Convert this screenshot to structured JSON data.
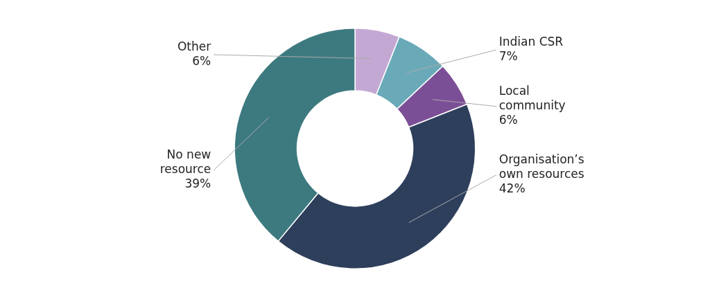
{
  "chart_data": {
    "type": "doughnut",
    "categories": [
      "Other",
      "Indian CSR",
      "Local\ncommunity",
      "Organisation’s\nown resources",
      "No new\nresource"
    ],
    "values": [
      6,
      7,
      6,
      42,
      39
    ],
    "value_labels": [
      "6%",
      "7%",
      "6%",
      "42%",
      "39%"
    ],
    "colors": [
      "#c4a8d4",
      "#6aaab8",
      "#7b4f96",
      "#2e3f5c",
      "#3d7a80"
    ],
    "data_labels": true
  }
}
